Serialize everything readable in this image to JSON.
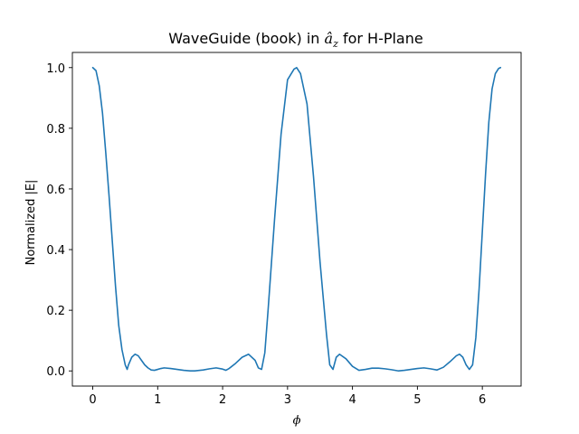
{
  "chart_data": {
    "type": "line",
    "title": {
      "prefix": "WaveGuide (book) in ",
      "symbol": "â",
      "subscript": "z",
      "suffix": " for H-Plane"
    },
    "xlabel": "ϕ",
    "ylabel": "Normalized |E|",
    "xlim": [
      -0.314,
      6.597
    ],
    "ylim": [
      -0.05,
      1.05
    ],
    "xticks": [
      0,
      1,
      2,
      3,
      4,
      5,
      6
    ],
    "yticks": [
      0.0,
      0.2,
      0.4,
      0.6,
      0.8,
      1.0
    ],
    "xtick_labels": [
      "0",
      "1",
      "2",
      "3",
      "4",
      "5",
      "6"
    ],
    "ytick_labels": [
      "0.0",
      "0.2",
      "0.4",
      "0.6",
      "0.8",
      "1.0"
    ],
    "grid": false,
    "series": [
      {
        "color": "#1f77b4",
        "x": [
          0,
          0.05,
          0.1,
          0.15,
          0.2,
          0.25,
          0.3,
          0.35,
          0.4,
          0.45,
          0.5,
          0.53,
          0.55,
          0.6,
          0.65,
          0.7,
          0.75,
          0.8,
          0.85,
          0.9,
          0.95,
          1.0,
          1.05,
          1.1,
          1.2,
          1.3,
          1.4,
          1.5,
          1.57,
          1.7,
          1.8,
          1.9,
          2.0,
          2.05,
          2.1,
          2.2,
          2.3,
          2.4,
          2.5,
          2.55,
          2.6,
          2.65,
          2.7,
          2.8,
          2.9,
          3.0,
          3.1,
          3.14,
          3.2,
          3.3,
          3.4,
          3.5,
          3.6,
          3.65,
          3.7,
          3.75,
          3.8,
          3.9,
          4.0,
          4.1,
          4.2,
          4.3,
          4.4,
          4.5,
          4.6,
          4.71,
          4.8,
          4.9,
          5.0,
          5.1,
          5.2,
          5.3,
          5.4,
          5.5,
          5.6,
          5.65,
          5.7,
          5.75,
          5.8,
          5.85,
          5.9,
          5.95,
          6.0,
          6.05,
          6.1,
          6.15,
          6.2,
          6.25,
          6.28
        ],
        "y": [
          1.0,
          0.99,
          0.94,
          0.85,
          0.72,
          0.58,
          0.43,
          0.28,
          0.15,
          0.07,
          0.02,
          0.005,
          0.02,
          0.045,
          0.055,
          0.05,
          0.035,
          0.02,
          0.01,
          0.003,
          0.002,
          0.005,
          0.008,
          0.01,
          0.008,
          0.005,
          0.002,
          0.0,
          0.0,
          0.003,
          0.007,
          0.01,
          0.006,
          0.002,
          0.008,
          0.025,
          0.045,
          0.055,
          0.035,
          0.01,
          0.005,
          0.06,
          0.2,
          0.5,
          0.78,
          0.96,
          0.995,
          1.0,
          0.98,
          0.88,
          0.64,
          0.36,
          0.12,
          0.02,
          0.005,
          0.045,
          0.055,
          0.04,
          0.015,
          0.002,
          0.005,
          0.009,
          0.009,
          0.007,
          0.004,
          0.0,
          0.002,
          0.005,
          0.008,
          0.01,
          0.007,
          0.003,
          0.012,
          0.03,
          0.05,
          0.055,
          0.045,
          0.02,
          0.005,
          0.02,
          0.11,
          0.27,
          0.46,
          0.65,
          0.82,
          0.93,
          0.98,
          0.997,
          1.0
        ]
      }
    ]
  }
}
